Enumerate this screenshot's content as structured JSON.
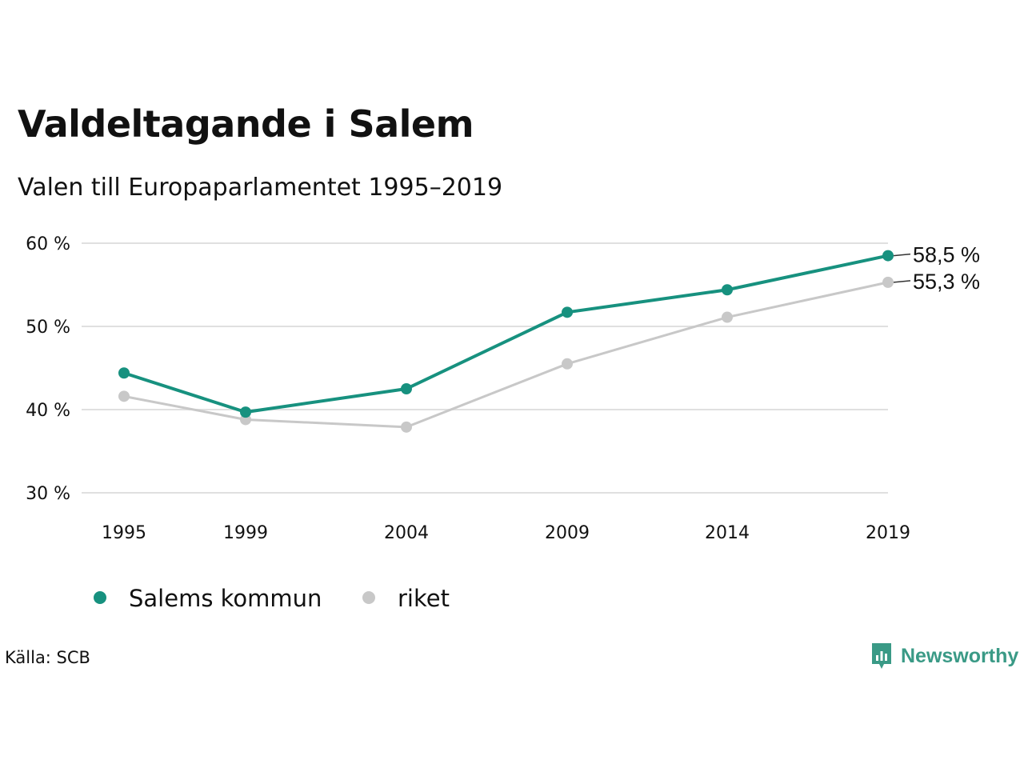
{
  "title": "Valdeltagande i Salem",
  "subtitle": "Valen till Europaparlamentet 1995–2019",
  "source": "Källa: SCB",
  "brand": "Newsworthy",
  "colors": {
    "salem": "#17917f",
    "riket": "#c8c8c8",
    "grid": "#e0e0e0",
    "brand": "#3a9a86"
  },
  "chart_data": {
    "type": "line",
    "title": "Valdeltagande i Salem",
    "subtitle": "Valen till Europaparlamentet 1995–2019",
    "categories": [
      "1995",
      "1999",
      "2004",
      "2009",
      "2014",
      "2019"
    ],
    "y_ticks": [
      "30 %",
      "40 %",
      "50 %",
      "60 %"
    ],
    "ylim": [
      30,
      60
    ],
    "grid": true,
    "legend_position": "bottom-left",
    "series": [
      {
        "name": "Salems kommun",
        "color": "#17917f",
        "values": [
          44.4,
          39.7,
          42.5,
          51.7,
          54.4,
          58.5
        ],
        "end_label": "58,5 %"
      },
      {
        "name": "riket",
        "color": "#c8c8c8",
        "values": [
          41.6,
          38.8,
          37.9,
          45.5,
          51.1,
          55.3
        ],
        "end_label": "55,3 %"
      }
    ]
  }
}
